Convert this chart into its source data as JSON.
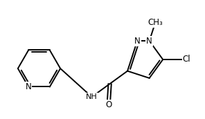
{
  "background_color": "#ffffff",
  "line_color": "#000000",
  "line_width": 1.4,
  "font_size": 8.5,
  "figsize": [
    2.96,
    1.72
  ],
  "dpi": 100,
  "xlim": [
    0.3,
    7.8
  ],
  "ylim": [
    1.0,
    4.9
  ]
}
